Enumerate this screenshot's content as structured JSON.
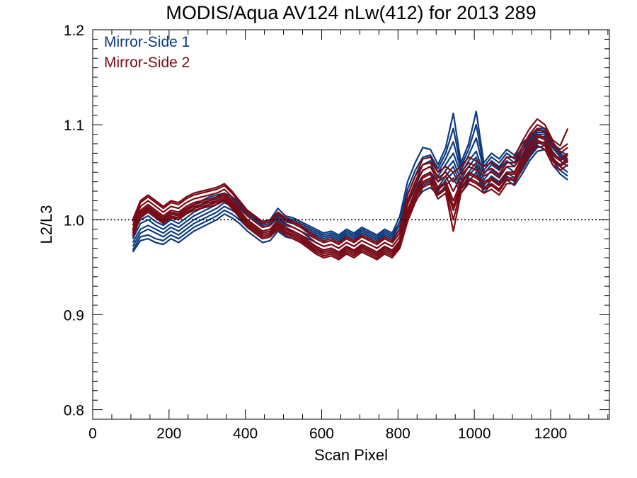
{
  "chart_data": {
    "type": "line",
    "title": "MODIS/Aqua AV124 nLw(412) for 2013 289",
    "xlabel": "Scan Pixel",
    "ylabel": "L2/L3",
    "xlim": [
      0,
      1354
    ],
    "ylim": [
      0.79,
      1.2
    ],
    "xticks": [
      0,
      200,
      400,
      600,
      800,
      1000,
      1200
    ],
    "xtick_labels": [
      "0",
      "200",
      "400",
      "600",
      "800",
      "1000",
      "1200"
    ],
    "yticks": [
      0.8,
      0.9,
      1.0,
      1.1,
      1.2
    ],
    "ytick_labels": [
      "0.8",
      "0.9",
      "1.0",
      "1.1",
      "1.2"
    ],
    "reference_line": {
      "y": 1.0,
      "style": "dotted"
    },
    "grid": false,
    "legend_position": "top-left",
    "legend": [
      {
        "label": "Mirror-Side 1",
        "color": "#0b3a7e"
      },
      {
        "label": "Mirror-Side 2",
        "color": "#7a0a14"
      }
    ],
    "x": [
      105,
      125,
      145,
      165,
      185,
      205,
      225,
      245,
      265,
      285,
      305,
      325,
      345,
      365,
      385,
      405,
      425,
      445,
      465,
      485,
      505,
      525,
      545,
      565,
      585,
      605,
      625,
      645,
      665,
      685,
      705,
      725,
      745,
      765,
      785,
      805,
      825,
      845,
      865,
      885,
      905,
      925,
      945,
      965,
      985,
      1005,
      1025,
      1045,
      1065,
      1085,
      1105,
      1125,
      1145,
      1165,
      1185,
      1205,
      1225,
      1245
    ],
    "series": [
      {
        "color": "#0b3a7e",
        "values": [
          0.972,
          0.986,
          0.99,
          0.986,
          0.982,
          0.988,
          0.984,
          0.99,
          0.996,
          1.0,
          1.004,
          1.008,
          1.014,
          1.01,
          1.004,
          0.996,
          0.99,
          0.984,
          0.986,
          0.996,
          0.99,
          0.988,
          0.984,
          0.98,
          0.976,
          0.972,
          0.974,
          0.97,
          0.976,
          0.972,
          0.978,
          0.974,
          0.97,
          0.976,
          0.972,
          0.982,
          1.01,
          1.028,
          1.04,
          1.044,
          1.034,
          1.046,
          1.056,
          1.036,
          1.05,
          1.06,
          1.036,
          1.046,
          1.04,
          1.05,
          1.044,
          1.056,
          1.07,
          1.08,
          1.082,
          1.066,
          1.056,
          1.05
        ]
      },
      {
        "color": "#0b3a7e",
        "values": [
          0.968,
          0.982,
          0.984,
          0.98,
          0.978,
          0.984,
          0.98,
          0.986,
          0.992,
          0.996,
          1.0,
          1.004,
          1.01,
          1.006,
          1.0,
          0.992,
          0.986,
          0.98,
          0.982,
          0.992,
          0.986,
          0.984,
          0.98,
          0.976,
          0.972,
          0.968,
          0.97,
          0.966,
          0.972,
          0.968,
          0.974,
          0.97,
          0.966,
          0.972,
          0.968,
          0.978,
          1.006,
          1.024,
          1.036,
          1.04,
          1.03,
          1.042,
          1.05,
          1.032,
          1.046,
          1.056,
          1.032,
          1.042,
          1.036,
          1.046,
          1.04,
          1.052,
          1.066,
          1.076,
          1.078,
          1.062,
          1.052,
          1.046
        ]
      },
      {
        "color": "#0b3a7e",
        "values": [
          0.976,
          0.99,
          0.994,
          0.99,
          0.986,
          0.992,
          0.988,
          0.994,
          1.0,
          1.004,
          1.008,
          1.012,
          1.018,
          1.014,
          1.008,
          1.0,
          0.994,
          0.988,
          0.99,
          1.0,
          0.994,
          0.992,
          0.988,
          0.984,
          0.98,
          0.976,
          0.978,
          0.974,
          0.98,
          0.976,
          0.982,
          0.978,
          0.974,
          0.98,
          0.976,
          0.986,
          1.016,
          1.034,
          1.046,
          1.05,
          1.04,
          1.052,
          1.062,
          1.042,
          1.056,
          1.066,
          1.042,
          1.052,
          1.046,
          1.056,
          1.05,
          1.062,
          1.076,
          1.086,
          1.088,
          1.072,
          1.062,
          1.056
        ]
      },
      {
        "color": "#0b3a7e",
        "values": [
          0.98,
          0.996,
          1.0,
          0.994,
          0.99,
          0.996,
          0.992,
          0.998,
          1.004,
          1.008,
          1.012,
          1.016,
          1.022,
          1.018,
          1.012,
          1.004,
          0.998,
          0.992,
          0.994,
          1.004,
          0.998,
          0.996,
          0.992,
          0.988,
          0.984,
          0.98,
          0.982,
          0.978,
          0.984,
          0.98,
          0.986,
          0.982,
          0.978,
          0.984,
          0.98,
          0.99,
          1.02,
          1.04,
          1.052,
          1.056,
          1.046,
          1.058,
          1.07,
          1.048,
          1.062,
          1.072,
          1.048,
          1.058,
          1.052,
          1.062,
          1.056,
          1.068,
          1.082,
          1.09,
          1.09,
          1.076,
          1.066,
          1.06
        ]
      },
      {
        "color": "#0b3a7e",
        "values": [
          0.986,
          1.0,
          1.004,
          0.998,
          0.994,
          1.0,
          0.996,
          1.002,
          1.008,
          1.012,
          1.016,
          1.02,
          1.024,
          1.02,
          1.014,
          1.006,
          1.0,
          0.994,
          0.996,
          1.006,
          1.0,
          0.998,
          0.994,
          0.99,
          0.986,
          0.982,
          0.984,
          0.98,
          0.986,
          0.982,
          0.988,
          0.984,
          0.98,
          0.986,
          0.982,
          0.994,
          1.026,
          1.046,
          1.058,
          1.062,
          1.05,
          1.064,
          1.082,
          1.052,
          1.068,
          1.086,
          1.052,
          1.062,
          1.056,
          1.066,
          1.06,
          1.072,
          1.084,
          1.092,
          1.092,
          1.078,
          1.068,
          1.062
        ]
      },
      {
        "color": "#0b3a7e",
        "values": [
          0.99,
          1.004,
          1.008,
          1.002,
          0.998,
          1.004,
          1.0,
          1.006,
          1.012,
          1.016,
          1.02,
          1.024,
          1.026,
          1.022,
          1.016,
          1.008,
          1.002,
          0.996,
          0.998,
          1.008,
          1.002,
          1.0,
          0.996,
          0.992,
          0.988,
          0.984,
          0.986,
          0.982,
          0.988,
          0.984,
          0.99,
          0.986,
          0.982,
          0.988,
          0.984,
          0.998,
          1.032,
          1.052,
          1.066,
          1.068,
          1.054,
          1.07,
          1.096,
          1.056,
          1.074,
          1.1,
          1.056,
          1.066,
          1.06,
          1.07,
          1.064,
          1.076,
          1.086,
          1.094,
          1.094,
          1.08,
          1.07,
          1.064
        ]
      },
      {
        "color": "#0b3a7e",
        "values": [
          0.966,
          0.978,
          0.98,
          0.976,
          0.974,
          0.98,
          0.976,
          0.982,
          0.988,
          0.992,
          0.996,
          1.0,
          1.006,
          1.002,
          0.996,
          0.988,
          0.982,
          0.976,
          0.978,
          0.988,
          0.982,
          0.98,
          0.976,
          0.972,
          0.968,
          0.966,
          0.968,
          0.964,
          0.97,
          0.966,
          0.972,
          0.968,
          0.964,
          0.97,
          0.966,
          0.976,
          1.004,
          1.02,
          1.03,
          1.034,
          1.026,
          1.036,
          1.044,
          1.028,
          1.04,
          1.05,
          1.028,
          1.038,
          1.032,
          1.042,
          1.036,
          1.048,
          1.062,
          1.072,
          1.074,
          1.058,
          1.048,
          1.042
        ]
      },
      {
        "color": "#0b3a7e",
        "values": [
          0.994,
          1.008,
          1.012,
          1.006,
          1.002,
          1.008,
          1.004,
          1.01,
          1.016,
          1.02,
          1.024,
          1.026,
          1.028,
          1.024,
          1.018,
          1.01,
          1.004,
          0.998,
          1.0,
          1.012,
          1.004,
          1.002,
          0.998,
          0.994,
          0.99,
          0.986,
          0.988,
          0.984,
          0.99,
          0.986,
          0.992,
          0.988,
          0.984,
          0.99,
          0.986,
          1.004,
          1.04,
          1.06,
          1.076,
          1.074,
          1.058,
          1.076,
          1.112,
          1.06,
          1.08,
          1.114,
          1.06,
          1.07,
          1.064,
          1.074,
          1.068,
          1.08,
          1.088,
          1.096,
          1.096,
          1.082,
          1.072,
          1.068
        ]
      },
      {
        "color": "#7a0a14",
        "values": [
          0.99,
          1.01,
          1.016,
          1.01,
          1.004,
          1.01,
          1.008,
          1.014,
          1.018,
          1.02,
          1.022,
          1.024,
          1.028,
          1.02,
          1.01,
          1.0,
          0.994,
          0.988,
          0.99,
          0.998,
          0.992,
          0.988,
          0.984,
          0.978,
          0.972,
          0.968,
          0.97,
          0.966,
          0.972,
          0.968,
          0.974,
          0.97,
          0.966,
          0.972,
          0.968,
          0.978,
          1.01,
          1.03,
          1.046,
          1.05,
          1.034,
          1.04,
          1.02,
          1.04,
          1.05,
          1.046,
          1.04,
          1.044,
          1.038,
          1.05,
          1.05,
          1.066,
          1.08,
          1.09,
          1.086,
          1.07,
          1.064,
          1.07
        ]
      },
      {
        "color": "#7a0a14",
        "values": [
          0.994,
          1.014,
          1.02,
          1.014,
          1.008,
          1.014,
          1.012,
          1.018,
          1.022,
          1.024,
          1.026,
          1.028,
          1.032,
          1.024,
          1.014,
          1.004,
          0.998,
          0.992,
          0.994,
          1.002,
          0.996,
          0.992,
          0.988,
          0.982,
          0.976,
          0.972,
          0.974,
          0.97,
          0.976,
          0.972,
          0.978,
          0.974,
          0.97,
          0.976,
          0.972,
          0.982,
          1.016,
          1.036,
          1.052,
          1.056,
          1.04,
          1.046,
          1.03,
          1.046,
          1.056,
          1.052,
          1.046,
          1.05,
          1.044,
          1.056,
          1.056,
          1.072,
          1.086,
          1.096,
          1.092,
          1.076,
          1.07,
          1.076
        ]
      },
      {
        "color": "#7a0a14",
        "values": [
          0.986,
          1.006,
          1.012,
          1.006,
          1.0,
          1.006,
          1.004,
          1.01,
          1.014,
          1.016,
          1.018,
          1.02,
          1.024,
          1.016,
          1.006,
          0.996,
          0.99,
          0.984,
          0.986,
          0.994,
          0.988,
          0.984,
          0.98,
          0.974,
          0.968,
          0.964,
          0.966,
          0.962,
          0.968,
          0.964,
          0.97,
          0.966,
          0.962,
          0.968,
          0.964,
          0.974,
          1.004,
          1.024,
          1.04,
          1.044,
          1.028,
          1.034,
          1.01,
          1.034,
          1.044,
          1.04,
          1.034,
          1.038,
          1.032,
          1.044,
          1.044,
          1.06,
          1.074,
          1.084,
          1.08,
          1.064,
          1.058,
          1.064
        ]
      },
      {
        "color": "#7a0a14",
        "values": [
          0.998,
          1.018,
          1.024,
          1.018,
          1.012,
          1.018,
          1.016,
          1.022,
          1.026,
          1.028,
          1.03,
          1.032,
          1.036,
          1.028,
          1.018,
          1.008,
          1.002,
          0.996,
          0.998,
          1.006,
          1.0,
          0.996,
          0.992,
          0.986,
          0.98,
          0.976,
          0.978,
          0.974,
          0.98,
          0.976,
          0.982,
          0.978,
          0.974,
          0.98,
          0.976,
          0.986,
          1.02,
          1.04,
          1.058,
          1.06,
          1.044,
          1.05,
          1.04,
          1.05,
          1.06,
          1.056,
          1.05,
          1.054,
          1.048,
          1.06,
          1.06,
          1.076,
          1.09,
          1.1,
          1.096,
          1.08,
          1.074,
          1.08
        ]
      },
      {
        "color": "#7a0a14",
        "values": [
          0.982,
          1.002,
          1.008,
          1.002,
          0.996,
          1.002,
          1.0,
          1.006,
          1.01,
          1.012,
          1.014,
          1.016,
          1.02,
          1.012,
          1.002,
          0.992,
          0.986,
          0.98,
          0.982,
          0.99,
          0.984,
          0.98,
          0.976,
          0.97,
          0.964,
          0.96,
          0.962,
          0.958,
          0.964,
          0.96,
          0.966,
          0.962,
          0.958,
          0.964,
          0.96,
          0.97,
          0.998,
          1.018,
          1.034,
          1.038,
          1.022,
          1.028,
          0.988,
          1.028,
          1.038,
          1.034,
          1.028,
          1.032,
          1.026,
          1.038,
          1.038,
          1.054,
          1.068,
          1.078,
          1.074,
          1.058,
          1.052,
          1.058
        ]
      },
      {
        "color": "#7a0a14",
        "values": [
          1.0,
          1.02,
          1.026,
          1.02,
          1.014,
          1.02,
          1.018,
          1.024,
          1.028,
          1.03,
          1.032,
          1.034,
          1.038,
          1.03,
          1.02,
          1.01,
          1.004,
          0.998,
          1.0,
          1.008,
          1.002,
          0.998,
          0.994,
          0.988,
          0.982,
          0.978,
          0.98,
          0.976,
          0.982,
          0.978,
          0.984,
          0.98,
          0.976,
          0.982,
          0.978,
          0.99,
          1.026,
          1.046,
          1.064,
          1.066,
          1.05,
          1.056,
          1.05,
          1.056,
          1.066,
          1.062,
          1.056,
          1.06,
          1.054,
          1.066,
          1.066,
          1.082,
          1.096,
          1.106,
          1.1,
          1.084,
          1.078,
          1.096
        ]
      },
      {
        "color": "#7a0a14",
        "values": [
          0.988,
          1.008,
          1.014,
          1.008,
          1.002,
          1.008,
          1.006,
          1.012,
          1.016,
          1.018,
          1.02,
          1.022,
          1.026,
          1.018,
          1.008,
          0.998,
          0.992,
          0.986,
          0.988,
          0.996,
          0.99,
          0.986,
          0.982,
          0.976,
          0.97,
          0.966,
          0.968,
          0.964,
          0.97,
          0.966,
          0.972,
          0.968,
          0.964,
          0.97,
          0.966,
          0.976,
          1.008,
          1.028,
          1.044,
          1.048,
          1.032,
          1.038,
          1.014,
          1.038,
          1.048,
          1.044,
          1.038,
          1.042,
          1.036,
          1.048,
          1.048,
          1.064,
          1.078,
          1.088,
          1.084,
          1.068,
          1.062,
          1.068
        ]
      },
      {
        "color": "#7a0a14",
        "values": [
          0.984,
          1.004,
          1.01,
          1.004,
          0.998,
          1.004,
          1.002,
          1.008,
          1.012,
          1.014,
          1.016,
          1.018,
          1.022,
          1.014,
          1.004,
          0.994,
          0.988,
          0.982,
          0.984,
          0.992,
          0.986,
          0.982,
          0.978,
          0.972,
          0.966,
          0.962,
          0.964,
          0.96,
          0.966,
          0.962,
          0.968,
          0.964,
          0.96,
          0.966,
          0.962,
          0.972,
          1.002,
          1.022,
          1.038,
          1.042,
          1.026,
          1.032,
          1.0,
          1.032,
          1.042,
          1.038,
          1.032,
          1.036,
          1.03,
          1.042,
          1.042,
          1.058,
          1.072,
          1.082,
          1.078,
          1.062,
          1.056,
          1.062
        ]
      }
    ]
  }
}
